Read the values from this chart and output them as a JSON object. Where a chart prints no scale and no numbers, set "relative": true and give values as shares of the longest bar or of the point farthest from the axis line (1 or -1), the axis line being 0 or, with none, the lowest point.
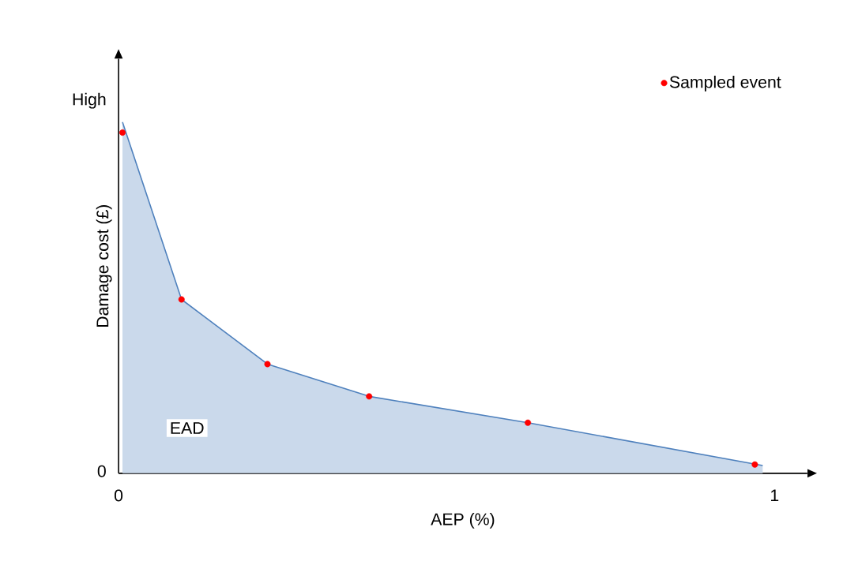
{
  "chart_data": {
    "type": "area",
    "xlabel": "AEP (%)",
    "ylabel": "Damage cost (£)",
    "relative": true,
    "series": [
      {
        "color": "#4f81bd",
        "x": [
          0.006,
          0.096,
          0.227,
          0.382,
          0.624,
          0.982
        ],
        "values": [
          1,
          0.495,
          0.311,
          0.219,
          0.144,
          0.022
        ]
      },
      {
        "type": "scatter",
        "name": "Sampled event",
        "color": "#ff0000",
        "marker": "circle",
        "x": [
          0.006,
          0.096,
          0.227,
          0.382,
          0.624,
          0.97
        ],
        "values": [
          0.97,
          0.495,
          0.311,
          0.219,
          0.144,
          0.025
        ]
      }
    ],
    "xlim": [
      0,
      1.05
    ],
    "xticks": [
      0,
      1
    ],
    "annotations": [
      "High",
      "0",
      "EAD"
    ],
    "legend": "top right"
  }
}
